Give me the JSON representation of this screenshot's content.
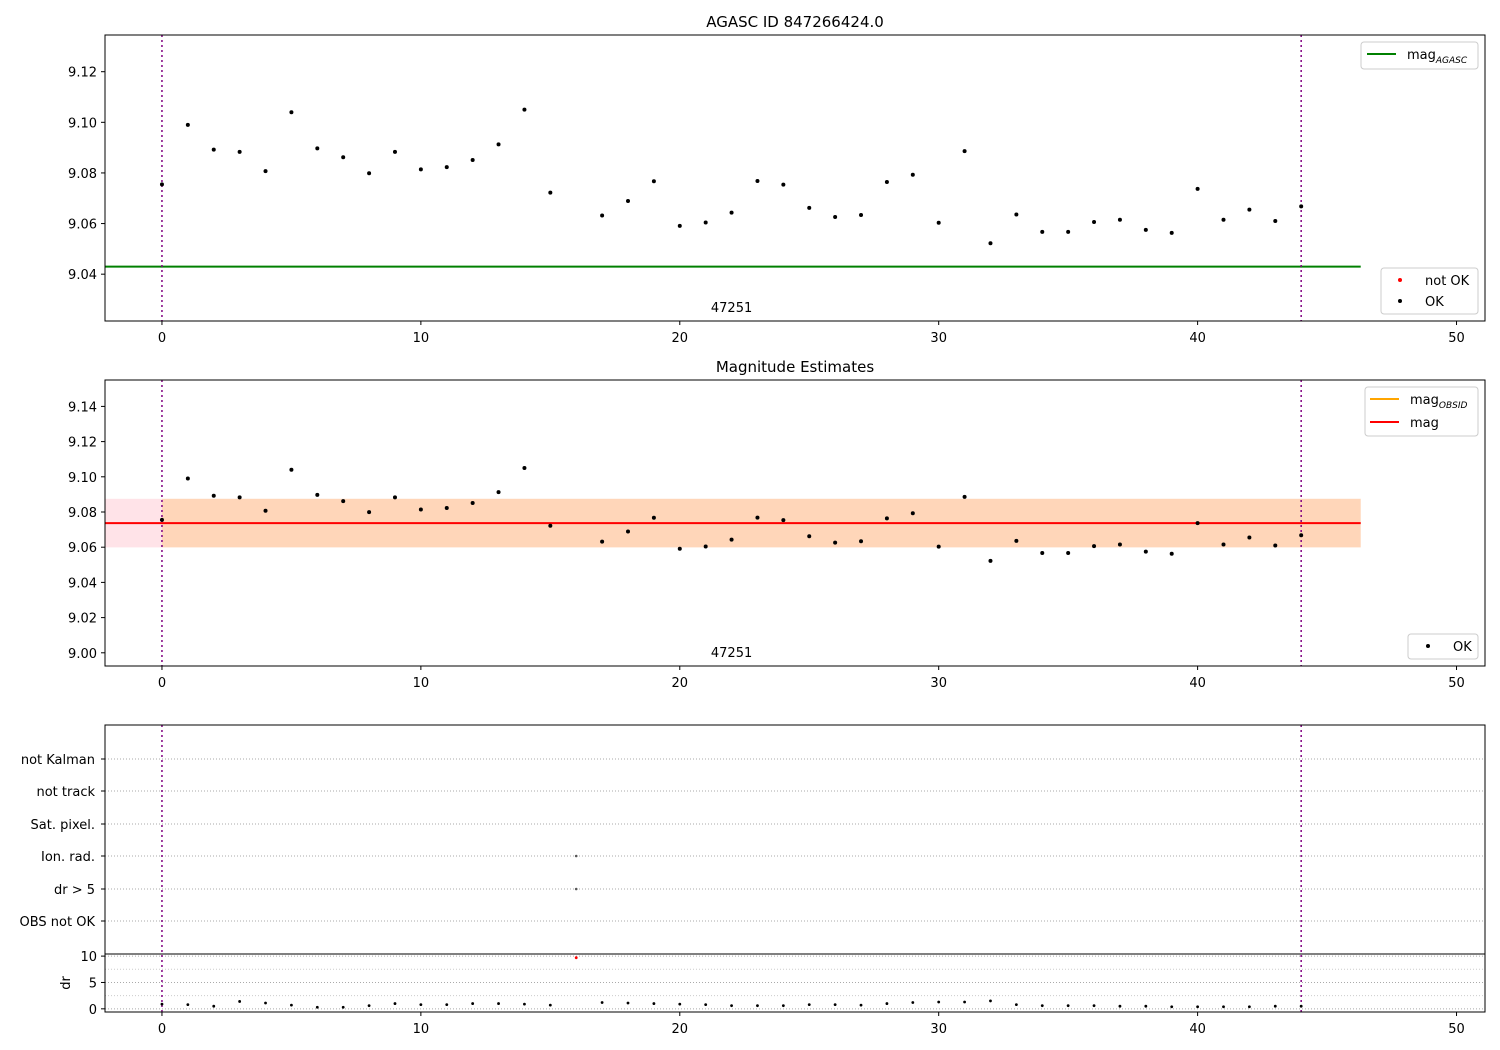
{
  "chart_data": [
    {
      "type": "scatter",
      "title": "AGASC ID 847266424.0",
      "xlim": [
        -2.2,
        51.1
      ],
      "ylim": [
        9.0215,
        9.1345
      ],
      "x_ticks": [
        0,
        10,
        20,
        30,
        40,
        50
      ],
      "y_ticks": [
        9.04,
        9.06,
        9.08,
        9.1,
        9.12
      ],
      "y_tick_labels": [
        "9.04",
        "9.06",
        "9.08",
        "9.10",
        "9.12"
      ],
      "obsid_annotation": {
        "x": 22,
        "text": "47251"
      },
      "vertical_markers": [
        0,
        44
      ],
      "reference_line": {
        "name": "mag",
        "subscript": "AGASC",
        "y": 9.043,
        "x_range": [
          -2.2,
          46.3
        ],
        "color": "#008000"
      },
      "series": [
        {
          "name": "not OK",
          "color": "#ff0000",
          "points": []
        },
        {
          "name": "OK",
          "color": "#000000",
          "points": [
            [
              0,
              9.0755
            ],
            [
              1,
              9.099
            ],
            [
              2,
              9.0892
            ],
            [
              3,
              9.0883
            ],
            [
              4,
              9.0807
            ],
            [
              5,
              9.104
            ],
            [
              6,
              9.0897
            ],
            [
              7,
              9.0862
            ],
            [
              8,
              9.0799
            ],
            [
              9,
              9.0883
            ],
            [
              10,
              9.0814
            ],
            [
              11,
              9.0823
            ],
            [
              12,
              9.0851
            ],
            [
              13,
              9.0913
            ],
            [
              14,
              9.105
            ],
            [
              15,
              9.0722
            ],
            [
              17,
              9.0632
            ],
            [
              18,
              9.0689
            ],
            [
              19,
              9.0767
            ],
            [
              20,
              9.0591
            ],
            [
              21,
              9.0604
            ],
            [
              22,
              9.0643
            ],
            [
              23,
              9.0768
            ],
            [
              24,
              9.0754
            ],
            [
              25,
              9.0662
            ],
            [
              26,
              9.0626
            ],
            [
              27,
              9.0634
            ],
            [
              28,
              9.0764
            ],
            [
              29,
              9.0793
            ],
            [
              30,
              9.0603
            ],
            [
              31,
              9.0886
            ],
            [
              32,
              9.0522
            ],
            [
              33,
              9.0636
            ],
            [
              34,
              9.0567
            ],
            [
              35,
              9.0567
            ],
            [
              36,
              9.0606
            ],
            [
              37,
              9.0615
            ],
            [
              38,
              9.0575
            ],
            [
              39,
              9.0563
            ],
            [
              40,
              9.0737
            ],
            [
              41,
              9.0615
            ],
            [
              42,
              9.0655
            ],
            [
              43,
              9.061
            ],
            [
              44,
              9.0668
            ]
          ]
        }
      ],
      "legends": {
        "lines": [
          {
            "name": "mag",
            "subscript": "AGASC",
            "color": "#008000"
          }
        ],
        "points": [
          {
            "name": "not OK",
            "color": "#ff0000"
          },
          {
            "name": "OK",
            "color": "#000000"
          }
        ]
      }
    },
    {
      "type": "scatter",
      "title": "Magnitude Estimates",
      "xlim": [
        -2.2,
        51.1
      ],
      "ylim": [
        8.9925,
        9.155
      ],
      "x_ticks": [
        0,
        10,
        20,
        30,
        40,
        50
      ],
      "y_ticks": [
        9.0,
        9.02,
        9.04,
        9.06,
        9.08,
        9.1,
        9.12,
        9.14
      ],
      "y_tick_labels": [
        "9.00",
        "9.02",
        "9.04",
        "9.06",
        "9.08",
        "9.10",
        "9.12",
        "9.14"
      ],
      "obsid_annotation": {
        "x": 22,
        "text": "47251"
      },
      "vertical_markers": [
        0,
        44
      ],
      "mag_line": {
        "name": "mag",
        "y": 9.0737,
        "x_range": [
          -2.2,
          46.3
        ],
        "color": "#ff0000"
      },
      "mag_band": {
        "y_range": [
          9.0599,
          9.0875
        ],
        "x_range": [
          -2.2,
          46.3
        ],
        "color": "#ffc0cb"
      },
      "obsid_band": {
        "y_range": [
          9.0599,
          9.0875
        ],
        "x_range": [
          0,
          46.3
        ],
        "color": "#ffa500"
      },
      "series": [
        {
          "name": "OK",
          "color": "#000000",
          "points": [
            [
              0,
              9.0755
            ],
            [
              1,
              9.099
            ],
            [
              2,
              9.0892
            ],
            [
              3,
              9.0883
            ],
            [
              4,
              9.0807
            ],
            [
              5,
              9.104
            ],
            [
              6,
              9.0897
            ],
            [
              7,
              9.0862
            ],
            [
              8,
              9.0799
            ],
            [
              9,
              9.0883
            ],
            [
              10,
              9.0814
            ],
            [
              11,
              9.0823
            ],
            [
              12,
              9.0851
            ],
            [
              13,
              9.0913
            ],
            [
              14,
              9.105
            ],
            [
              15,
              9.0722
            ],
            [
              17,
              9.0632
            ],
            [
              18,
              9.0689
            ],
            [
              19,
              9.0767
            ],
            [
              20,
              9.0591
            ],
            [
              21,
              9.0604
            ],
            [
              22,
              9.0643
            ],
            [
              23,
              9.0768
            ],
            [
              24,
              9.0754
            ],
            [
              25,
              9.0662
            ],
            [
              26,
              9.0626
            ],
            [
              27,
              9.0634
            ],
            [
              28,
              9.0764
            ],
            [
              29,
              9.0793
            ],
            [
              30,
              9.0603
            ],
            [
              31,
              9.0886
            ],
            [
              32,
              9.0522
            ],
            [
              33,
              9.0636
            ],
            [
              34,
              9.0567
            ],
            [
              35,
              9.0567
            ],
            [
              36,
              9.0606
            ],
            [
              37,
              9.0615
            ],
            [
              38,
              9.0575
            ],
            [
              39,
              9.0563
            ],
            [
              40,
              9.0737
            ],
            [
              41,
              9.0615
            ],
            [
              42,
              9.0655
            ],
            [
              43,
              9.061
            ],
            [
              44,
              9.0668
            ]
          ]
        }
      ],
      "legends": {
        "lines": [
          {
            "name": "mag",
            "subscript": "OBSID",
            "color": "#ffa500"
          },
          {
            "name": "mag",
            "subscript": "",
            "color": "#ff0000"
          }
        ],
        "points": [
          {
            "name": "OK",
            "color": "#000000"
          }
        ]
      }
    },
    {
      "type": "scatter",
      "xlim": [
        -2.2,
        51.1
      ],
      "categories": [
        "OBS not OK",
        "dr > 5",
        "Ion. rad.",
        "Sat. pixel.",
        "not track",
        "not Kalman"
      ],
      "vertical_markers": [
        0,
        44
      ],
      "flag_points": [
        {
          "category": "Ion. rad.",
          "x": 16,
          "color": "#555555"
        },
        {
          "category": "dr > 5",
          "x": 16,
          "color": "#555555"
        }
      ]
    },
    {
      "type": "scatter",
      "xlim": [
        -2.2,
        51.1
      ],
      "ylim": [
        -0.6,
        10.4
      ],
      "ylabel": "dr",
      "x_ticks": [
        0,
        10,
        20,
        30,
        40,
        50
      ],
      "y_ticks": [
        0,
        5,
        10
      ],
      "vertical_markers": [
        0,
        44
      ],
      "series": [
        {
          "name": "not OK",
          "color": "#ff0000",
          "points": [
            [
              16,
              9.7
            ]
          ]
        },
        {
          "name": "OK",
          "color": "#000000",
          "points": [
            [
              0,
              0.9
            ],
            [
              1,
              0.8
            ],
            [
              2,
              0.5
            ],
            [
              3,
              1.4
            ],
            [
              4,
              1.1
            ],
            [
              5,
              0.7
            ],
            [
              6,
              0.3
            ],
            [
              7,
              0.3
            ],
            [
              8,
              0.6
            ],
            [
              9,
              1.0
            ],
            [
              10,
              0.8
            ],
            [
              11,
              0.8
            ],
            [
              12,
              1.0
            ],
            [
              13,
              1.0
            ],
            [
              14,
              0.9
            ],
            [
              15,
              0.7
            ],
            [
              17,
              1.2
            ],
            [
              18,
              1.1
            ],
            [
              19,
              1.0
            ],
            [
              20,
              0.9
            ],
            [
              21,
              0.8
            ],
            [
              22,
              0.6
            ],
            [
              23,
              0.6
            ],
            [
              24,
              0.6
            ],
            [
              25,
              0.8
            ],
            [
              26,
              0.8
            ],
            [
              27,
              0.7
            ],
            [
              28,
              1.0
            ],
            [
              29,
              1.2
            ],
            [
              30,
              1.3
            ],
            [
              31,
              1.3
            ],
            [
              32,
              1.5
            ],
            [
              33,
              0.8
            ],
            [
              34,
              0.6
            ],
            [
              35,
              0.6
            ],
            [
              36,
              0.6
            ],
            [
              37,
              0.5
            ],
            [
              38,
              0.5
            ],
            [
              39,
              0.4
            ],
            [
              40,
              0.4
            ],
            [
              41,
              0.4
            ],
            [
              42,
              0.4
            ],
            [
              43,
              0.5
            ],
            [
              44,
              0.5
            ]
          ]
        }
      ]
    }
  ]
}
